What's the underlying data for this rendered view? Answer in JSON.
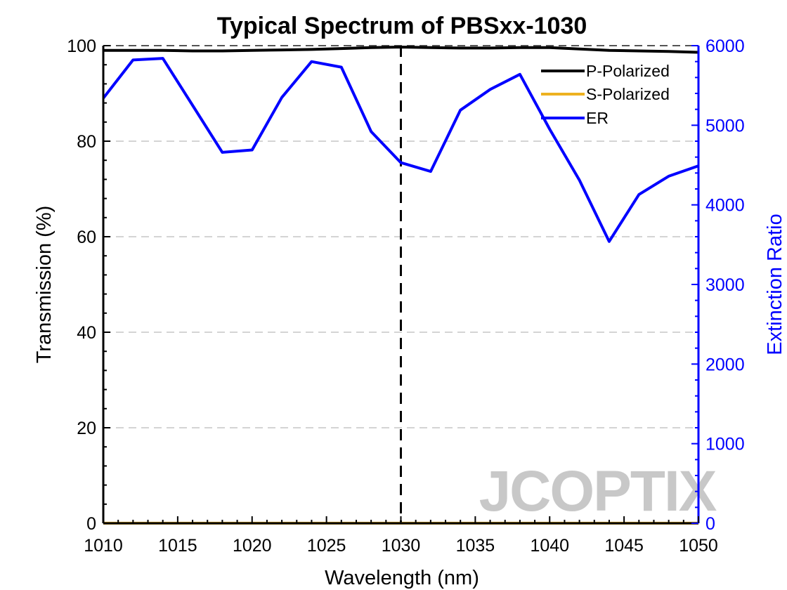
{
  "chart_data": {
    "type": "line",
    "title": "Typical Spectrum of PBSxx-1030",
    "xlabel": "Wavelength (nm)",
    "ylabel_left": "Transmission (%)",
    "ylabel_right": "Extinction Ratio",
    "xlim": [
      1010,
      1050
    ],
    "ylim_left": [
      0,
      100
    ],
    "ylim_right": [
      0,
      6000
    ],
    "x_ticks": [
      1010,
      1015,
      1020,
      1025,
      1030,
      1035,
      1040,
      1045,
      1050
    ],
    "y_left_ticks": [
      0,
      20,
      40,
      60,
      80,
      100
    ],
    "y_right_ticks": [
      0,
      1000,
      2000,
      3000,
      4000,
      5000,
      6000
    ],
    "grid": "horizontal dashed",
    "legend_position": "top-right",
    "reference_line_x": 1030,
    "watermark": "JCOPTIX",
    "series": [
      {
        "name": "P-Polarized",
        "axis": "left",
        "color": "#000000",
        "x": [
          1010,
          1012,
          1014,
          1016,
          1018,
          1020,
          1022,
          1024,
          1026,
          1028,
          1030,
          1032,
          1034,
          1036,
          1038,
          1040,
          1042,
          1044,
          1046,
          1048,
          1050
        ],
        "values": [
          99.0,
          99.0,
          99.0,
          98.9,
          98.9,
          99.0,
          99.1,
          99.2,
          99.4,
          99.6,
          99.7,
          99.6,
          99.5,
          99.5,
          99.6,
          99.6,
          99.3,
          99.0,
          98.9,
          98.8,
          98.6
        ]
      },
      {
        "name": "S-Polarized",
        "axis": "left",
        "color": "#EDB120",
        "x": [
          1010,
          1012,
          1014,
          1016,
          1018,
          1020,
          1022,
          1024,
          1026,
          1028,
          1030,
          1032,
          1034,
          1036,
          1038,
          1040,
          1042,
          1044,
          1046,
          1048,
          1050
        ],
        "values": [
          0.02,
          0.02,
          0.02,
          0.02,
          0.02,
          0.02,
          0.02,
          0.02,
          0.02,
          0.02,
          0.02,
          0.02,
          0.02,
          0.02,
          0.02,
          0.02,
          0.02,
          0.02,
          0.02,
          0.02,
          0.02
        ]
      },
      {
        "name": "ER",
        "axis": "right",
        "color": "#0000FF",
        "x": [
          1010,
          1012,
          1014,
          1016,
          1018,
          1020,
          1022,
          1024,
          1026,
          1028,
          1030,
          1032,
          1034,
          1036,
          1038,
          1040,
          1042,
          1044,
          1046,
          1048,
          1050
        ],
        "values": [
          5340,
          5820,
          5840,
          5250,
          4660,
          4690,
          5350,
          5800,
          5730,
          4920,
          4530,
          4420,
          5190,
          5450,
          5640,
          4950,
          4310,
          3540,
          4130,
          4360,
          4490
        ]
      }
    ]
  }
}
